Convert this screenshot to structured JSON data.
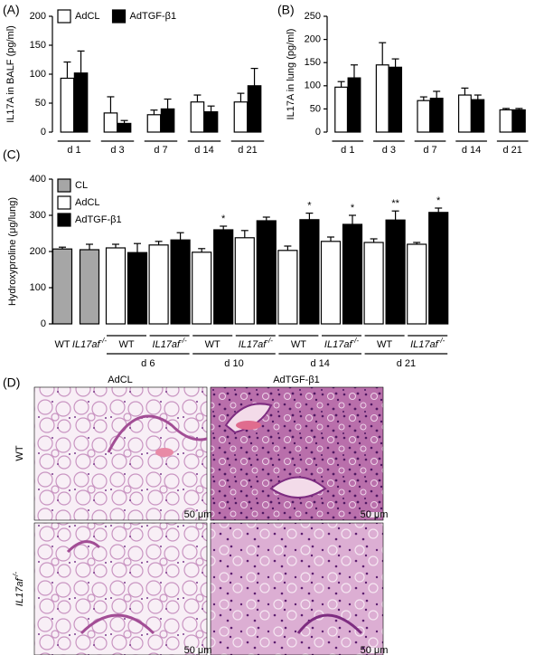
{
  "chart_data": [
    {
      "type": "bar",
      "panel_label": "(A)",
      "ylabel": "IL17A in BALF (pg/ml)",
      "categories": [
        "d 1",
        "d 3",
        "d 7",
        "d 14",
        "d 21"
      ],
      "series": [
        {
          "name": "AdCL",
          "color": "#ffffff",
          "values": [
            93,
            33,
            30,
            52,
            52
          ],
          "errors": [
            28,
            28,
            8,
            12,
            15
          ]
        },
        {
          "name": "AdTGF-β1",
          "color": "#000000",
          "values": [
            102,
            15,
            40,
            35,
            80
          ],
          "errors": [
            38,
            5,
            17,
            10,
            30
          ]
        }
      ],
      "ylim": [
        0,
        200
      ],
      "yticks": [
        0,
        50,
        100,
        150,
        200
      ],
      "legend": "top-left"
    },
    {
      "type": "bar",
      "panel_label": "(B)",
      "ylabel": "IL17A in lung (pg/ml)",
      "categories": [
        "d 1",
        "d 3",
        "d 7",
        "d 14",
        "d 21"
      ],
      "series": [
        {
          "color": "#ffffff",
          "values": [
            97,
            145,
            68,
            80,
            48
          ],
          "errors": [
            12,
            48,
            8,
            15,
            3
          ]
        },
        {
          "color": "#000000",
          "values": [
            117,
            140,
            73,
            70,
            48
          ],
          "errors": [
            28,
            18,
            15,
            10,
            3
          ]
        }
      ],
      "ylim": [
        0,
        250
      ],
      "yticks": [
        0,
        50,
        100,
        150,
        200,
        250
      ]
    },
    {
      "type": "nested-bar",
      "panel_label": "(C)",
      "ylabel": "Hydroxyproline (μg/lung)",
      "genotypes": [
        {
          "name": "WT"
        },
        {
          "name": "IL17af",
          "sup": "-/-"
        }
      ],
      "timepoints": [
        "d 6",
        "d 10",
        "d 14",
        "d 21"
      ],
      "series": [
        {
          "name": "CL",
          "color": "#a6a6a6",
          "values": [
            207,
            205
          ],
          "errors": [
            5,
            15
          ]
        },
        {
          "name": "AdCL",
          "color": "#ffffff",
          "values": [
            210,
            218,
            198,
            238,
            203,
            228,
            225,
            220
          ],
          "errors": [
            10,
            10,
            10,
            20,
            12,
            12,
            10,
            5
          ]
        },
        {
          "name": "AdTGF-β1",
          "color": "#000000",
          "values": [
            197,
            232,
            260,
            285,
            288,
            275,
            287,
            308
          ],
          "errors": [
            25,
            20,
            10,
            10,
            18,
            25,
            25,
            12
          ],
          "annotations": [
            null,
            null,
            "*",
            null,
            "*",
            "*",
            "**",
            "*"
          ]
        }
      ],
      "ylim": [
        0,
        400
      ],
      "yticks": [
        0,
        100,
        200,
        300,
        400
      ],
      "legend": "top-left"
    }
  ],
  "panel_d": {
    "panel_label": "(D)",
    "columns": [
      "AdCL",
      "AdTGF-β1"
    ],
    "rows": [
      {
        "name": "WT"
      },
      {
        "name": "IL17af",
        "sup": "-/-"
      }
    ],
    "scale_bar": "50 μm"
  }
}
